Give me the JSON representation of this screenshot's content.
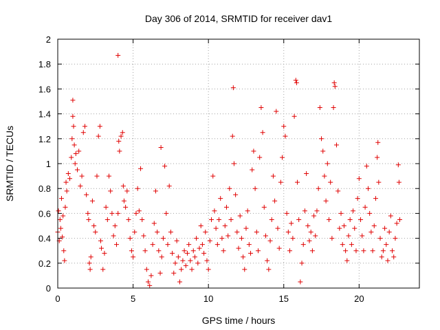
{
  "chart_data": {
    "type": "scatter",
    "title": "Day 306 of 2014, SRMTID for receiver dav1",
    "xlabel": "GPS time / hours",
    "ylabel": "SRMTID / TECUs",
    "xlim": [
      0,
      24
    ],
    "ylim": [
      0,
      2
    ],
    "xticks": [
      0,
      5,
      10,
      15,
      20
    ],
    "yticks": [
      0,
      0.2,
      0.4,
      0.6,
      0.8,
      1,
      1.2,
      1.4,
      1.6,
      1.8,
      2
    ],
    "grid": true,
    "marker": "+",
    "color": "#e00000",
    "series": [
      {
        "name": "SRMTID dav1",
        "points": [
          [
            0.0,
            0.45
          ],
          [
            0.05,
            0.62
          ],
          [
            0.1,
            0.38
          ],
          [
            0.15,
            0.55
          ],
          [
            0.2,
            0.48
          ],
          [
            0.25,
            0.72
          ],
          [
            0.3,
            0.41
          ],
          [
            0.35,
            0.58
          ],
          [
            0.4,
            0.3
          ],
          [
            0.45,
            0.22
          ],
          [
            0.5,
            0.65
          ],
          [
            0.55,
            0.85
          ],
          [
            0.6,
            0.78
          ],
          [
            0.7,
            0.92
          ],
          [
            0.8,
            0.88
          ],
          [
            0.9,
            1.05
          ],
          [
            0.95,
            1.2
          ],
          [
            1.0,
            1.38
          ],
          [
            1.0,
            1.51
          ],
          [
            1.05,
            1.3
          ],
          [
            1.1,
            1.15
          ],
          [
            1.15,
            1.0
          ],
          [
            1.2,
            1.08
          ],
          [
            1.3,
            0.95
          ],
          [
            1.4,
            1.1
          ],
          [
            1.5,
            0.82
          ],
          [
            1.6,
            0.9
          ],
          [
            1.7,
            1.25
          ],
          [
            1.8,
            1.3
          ],
          [
            1.9,
            0.75
          ],
          [
            2.0,
            0.6
          ],
          [
            2.05,
            0.55
          ],
          [
            2.1,
            0.2
          ],
          [
            2.15,
            0.15
          ],
          [
            2.2,
            0.25
          ],
          [
            2.3,
            0.7
          ],
          [
            2.4,
            0.5
          ],
          [
            2.5,
            0.45
          ],
          [
            2.6,
            0.9
          ],
          [
            2.7,
            1.22
          ],
          [
            2.8,
            1.3
          ],
          [
            2.85,
            0.38
          ],
          [
            2.9,
            0.32
          ],
          [
            3.0,
            0.15
          ],
          [
            3.1,
            0.28
          ],
          [
            3.2,
            0.65
          ],
          [
            3.3,
            0.55
          ],
          [
            3.4,
            0.9
          ],
          [
            3.5,
            0.78
          ],
          [
            3.6,
            0.6
          ],
          [
            3.7,
            0.42
          ],
          [
            3.8,
            0.5
          ],
          [
            3.9,
            0.35
          ],
          [
            4.0,
            0.6
          ],
          [
            4.0,
            1.87
          ],
          [
            4.05,
            1.18
          ],
          [
            4.1,
            1.1
          ],
          [
            4.2,
            1.22
          ],
          [
            4.3,
            1.25
          ],
          [
            4.35,
            0.82
          ],
          [
            4.4,
            0.7
          ],
          [
            4.5,
            0.65
          ],
          [
            4.6,
            0.78
          ],
          [
            4.7,
            0.55
          ],
          [
            4.8,
            0.4
          ],
          [
            4.9,
            0.3
          ],
          [
            5.0,
            0.25
          ],
          [
            5.1,
            0.45
          ],
          [
            5.2,
            0.6
          ],
          [
            5.3,
            0.8
          ],
          [
            5.4,
            0.62
          ],
          [
            5.5,
            0.96
          ],
          [
            5.6,
            0.55
          ],
          [
            5.7,
            0.42
          ],
          [
            5.8,
            0.3
          ],
          [
            5.9,
            0.15
          ],
          [
            6.0,
            0.05
          ],
          [
            6.1,
            0.02
          ],
          [
            6.2,
            0.1
          ],
          [
            6.3,
            0.35
          ],
          [
            6.4,
            0.52
          ],
          [
            6.5,
            0.78
          ],
          [
            6.6,
            0.45
          ],
          [
            6.7,
            0.3
          ],
          [
            6.8,
            0.12
          ],
          [
            6.85,
            1.13
          ],
          [
            6.9,
            0.25
          ],
          [
            7.0,
            0.4
          ],
          [
            7.1,
            0.98
          ],
          [
            7.2,
            0.6
          ],
          [
            7.3,
            0.35
          ],
          [
            7.4,
            0.82
          ],
          [
            7.5,
            0.45
          ],
          [
            7.6,
            0.28
          ],
          [
            7.7,
            0.12
          ],
          [
            7.8,
            0.2
          ],
          [
            7.9,
            0.38
          ],
          [
            8.0,
            0.25
          ],
          [
            8.1,
            0.05
          ],
          [
            8.2,
            0.15
          ],
          [
            8.3,
            0.22
          ],
          [
            8.4,
            0.3
          ],
          [
            8.5,
            0.18
          ],
          [
            8.6,
            0.28
          ],
          [
            8.7,
            0.35
          ],
          [
            8.8,
            0.22
          ],
          [
            8.9,
            0.15
          ],
          [
            9.0,
            0.3
          ],
          [
            9.1,
            0.25
          ],
          [
            9.2,
            0.4
          ],
          [
            9.3,
            0.2
          ],
          [
            9.4,
            0.32
          ],
          [
            9.5,
            0.5
          ],
          [
            9.6,
            0.35
          ],
          [
            9.7,
            0.28
          ],
          [
            9.8,
            0.45
          ],
          [
            9.9,
            0.22
          ],
          [
            10.0,
            0.15
          ],
          [
            10.1,
            0.38
          ],
          [
            10.2,
            0.55
          ],
          [
            10.3,
            0.9
          ],
          [
            10.4,
            0.62
          ],
          [
            10.5,
            0.48
          ],
          [
            10.6,
            0.35
          ],
          [
            10.7,
            0.55
          ],
          [
            10.8,
            0.72
          ],
          [
            10.9,
            0.4
          ],
          [
            11.0,
            0.3
          ],
          [
            11.1,
            0.5
          ],
          [
            11.2,
            0.65
          ],
          [
            11.3,
            0.42
          ],
          [
            11.4,
            0.8
          ],
          [
            11.5,
            0.55
          ],
          [
            11.6,
            1.22
          ],
          [
            11.65,
            1.61
          ],
          [
            11.7,
            1.0
          ],
          [
            11.8,
            0.75
          ],
          [
            11.9,
            0.45
          ],
          [
            12.0,
            0.32
          ],
          [
            12.1,
            0.58
          ],
          [
            12.2,
            0.4
          ],
          [
            12.3,
            0.25
          ],
          [
            12.4,
            0.15
          ],
          [
            12.5,
            0.48
          ],
          [
            12.6,
            0.62
          ],
          [
            12.7,
            0.35
          ],
          [
            12.8,
            0.28
          ],
          [
            12.9,
            0.95
          ],
          [
            13.0,
            1.1
          ],
          [
            13.1,
            0.8
          ],
          [
            13.2,
            0.45
          ],
          [
            13.3,
            0.3
          ],
          [
            13.4,
            1.05
          ],
          [
            13.5,
            1.45
          ],
          [
            13.6,
            1.25
          ],
          [
            13.7,
            0.65
          ],
          [
            13.8,
            0.42
          ],
          [
            13.9,
            0.22
          ],
          [
            14.0,
            0.15
          ],
          [
            14.1,
            0.38
          ],
          [
            14.2,
            0.55
          ],
          [
            14.3,
            0.9
          ],
          [
            14.4,
            0.7
          ],
          [
            14.5,
            1.42
          ],
          [
            14.6,
            0.48
          ],
          [
            14.7,
            0.32
          ],
          [
            14.8,
            0.85
          ],
          [
            14.9,
            1.05
          ],
          [
            15.0,
            1.3
          ],
          [
            15.1,
            1.22
          ],
          [
            15.2,
            0.6
          ],
          [
            15.3,
            0.45
          ],
          [
            15.4,
            0.3
          ],
          [
            15.5,
            0.52
          ],
          [
            15.6,
            0.4
          ],
          [
            15.7,
            1.38
          ],
          [
            15.8,
            1.67
          ],
          [
            15.85,
            1.65
          ],
          [
            15.9,
            0.85
          ],
          [
            16.0,
            0.55
          ],
          [
            16.1,
            0.05
          ],
          [
            16.2,
            0.2
          ],
          [
            16.3,
            0.35
          ],
          [
            16.4,
            0.62
          ],
          [
            16.5,
            0.92
          ],
          [
            16.6,
            0.5
          ],
          [
            16.7,
            0.38
          ],
          [
            16.8,
            0.45
          ],
          [
            16.9,
            0.3
          ],
          [
            17.0,
            0.58
          ],
          [
            17.1,
            0.42
          ],
          [
            17.2,
            0.62
          ],
          [
            17.3,
            0.8
          ],
          [
            17.4,
            1.45
          ],
          [
            17.5,
            1.2
          ],
          [
            17.6,
            1.1
          ],
          [
            17.7,
            0.9
          ],
          [
            17.8,
            0.7
          ],
          [
            17.9,
            1.0
          ],
          [
            18.0,
            0.55
          ],
          [
            18.1,
            0.85
          ],
          [
            18.2,
            0.4
          ],
          [
            18.3,
            1.45
          ],
          [
            18.35,
            1.65
          ],
          [
            18.4,
            1.62
          ],
          [
            18.5,
            1.15
          ],
          [
            18.6,
            0.78
          ],
          [
            18.7,
            0.48
          ],
          [
            18.8,
            0.6
          ],
          [
            18.9,
            0.35
          ],
          [
            19.0,
            0.5
          ],
          [
            19.1,
            0.3
          ],
          [
            19.2,
            0.22
          ],
          [
            19.3,
            0.42
          ],
          [
            19.4,
            0.55
          ],
          [
            19.5,
            0.35
          ],
          [
            19.6,
            0.62
          ],
          [
            19.7,
            0.48
          ],
          [
            19.8,
            0.3
          ],
          [
            19.9,
            0.72
          ],
          [
            20.0,
            0.88
          ],
          [
            20.1,
            0.55
          ],
          [
            20.2,
            0.42
          ],
          [
            20.3,
            0.3
          ],
          [
            20.4,
            0.65
          ],
          [
            20.5,
            0.98
          ],
          [
            20.6,
            0.8
          ],
          [
            20.7,
            0.6
          ],
          [
            20.8,
            0.45
          ],
          [
            20.9,
            0.3
          ],
          [
            21.0,
            0.5
          ],
          [
            21.1,
            0.72
          ],
          [
            21.2,
            1.05
          ],
          [
            21.25,
            1.17
          ],
          [
            21.3,
            0.85
          ],
          [
            21.4,
            0.4
          ],
          [
            21.5,
            0.25
          ],
          [
            21.6,
            0.3
          ],
          [
            21.7,
            0.48
          ],
          [
            21.8,
            0.35
          ],
          [
            21.9,
            0.22
          ],
          [
            22.0,
            0.45
          ],
          [
            22.1,
            0.58
          ],
          [
            22.2,
            0.3
          ],
          [
            22.3,
            0.25
          ],
          [
            22.4,
            0.4
          ],
          [
            22.5,
            0.52
          ],
          [
            22.6,
            0.99
          ],
          [
            22.65,
            0.85
          ],
          [
            22.7,
            0.55
          ]
        ]
      }
    ]
  }
}
